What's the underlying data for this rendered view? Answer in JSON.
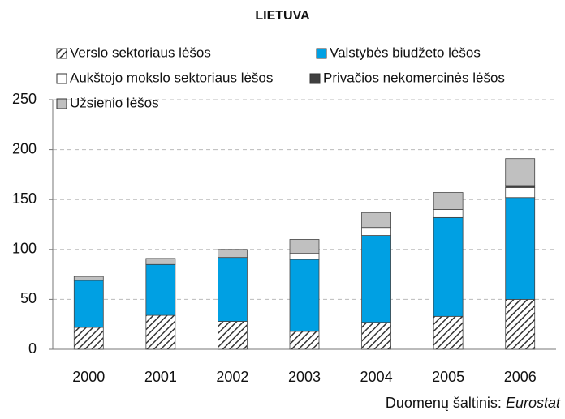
{
  "chart_data": {
    "type": "stacked_bar",
    "title": "LIETUVA",
    "categories": [
      "2000",
      "2001",
      "2002",
      "2003",
      "2004",
      "2005",
      "2006"
    ],
    "series": [
      {
        "name": "Verslo sektoriaus lėšos",
        "color": "#333333",
        "hatch": true,
        "values": [
          22,
          34,
          28,
          18,
          27,
          33,
          50
        ]
      },
      {
        "name": "Valstybės biudžeto lėšos",
        "color": "#00a0e3",
        "values": [
          47,
          51,
          64,
          72,
          87,
          99,
          102
        ]
      },
      {
        "name": "Aukštojo mokslo sektoriaus lėšos",
        "color": "#ffffff",
        "values": [
          0,
          0,
          0,
          6,
          8,
          8,
          10
        ]
      },
      {
        "name": "Privačios nekomercinės lėšos",
        "color": "#404040",
        "values": [
          0,
          0,
          0,
          0,
          0,
          0,
          2
        ]
      },
      {
        "name": "Užsienio lėšos",
        "color": "#c0c0c0",
        "values": [
          4,
          6,
          8,
          14,
          15,
          17,
          27
        ]
      }
    ],
    "ylim": [
      0,
      250
    ],
    "yticks": [
      0,
      50,
      100,
      150,
      200,
      250
    ],
    "grid": true,
    "source_label": "Duomenų šaltinis:",
    "source_name": "Eurostat"
  }
}
